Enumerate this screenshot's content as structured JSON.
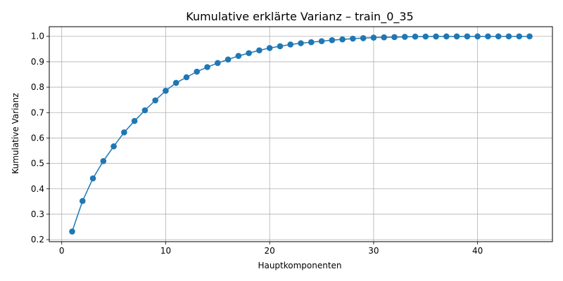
{
  "chart_data": {
    "type": "line",
    "title": "Kumulative erklärte Varianz – train_0_35",
    "xlabel": "Hauptkomponenten",
    "ylabel": "Kumulative Varianz",
    "xlim": [
      -1.2,
      47.2
    ],
    "ylim": [
      0.192,
      1.038
    ],
    "xticks": [
      0,
      10,
      20,
      30,
      40
    ],
    "yticks": [
      0.2,
      0.3,
      0.4,
      0.5,
      0.6,
      0.7,
      0.8,
      0.9,
      1.0
    ],
    "xtick_labels": [
      "0",
      "10",
      "20",
      "30",
      "40"
    ],
    "ytick_labels": [
      "0.2",
      "0.3",
      "0.4",
      "0.5",
      "0.6",
      "0.7",
      "0.8",
      "0.9",
      "1.0"
    ],
    "grid": true,
    "line_color": "#1f77b4",
    "marker": "circle",
    "series": [
      {
        "x": [
          1,
          2,
          3,
          4,
          5,
          6,
          7,
          8,
          9,
          10,
          11,
          12,
          13,
          14,
          15,
          16,
          17,
          18,
          19,
          20,
          21,
          22,
          23,
          24,
          25,
          26,
          27,
          28,
          29,
          30,
          31,
          32,
          33,
          34,
          35,
          36,
          37,
          38,
          39,
          40,
          41,
          42,
          43,
          44,
          45
        ],
        "values": [
          0.232,
          0.352,
          0.441,
          0.509,
          0.567,
          0.622,
          0.667,
          0.709,
          0.748,
          0.786,
          0.817,
          0.839,
          0.861,
          0.879,
          0.895,
          0.909,
          0.923,
          0.934,
          0.945,
          0.954,
          0.961,
          0.968,
          0.973,
          0.977,
          0.981,
          0.985,
          0.988,
          0.991,
          0.993,
          0.995,
          0.996,
          0.997,
          0.998,
          0.999,
          0.9993,
          0.9995,
          0.9997,
          0.9998,
          0.9999,
          0.9999,
          1.0,
          1.0,
          1.0,
          1.0,
          1.0
        ]
      }
    ]
  }
}
